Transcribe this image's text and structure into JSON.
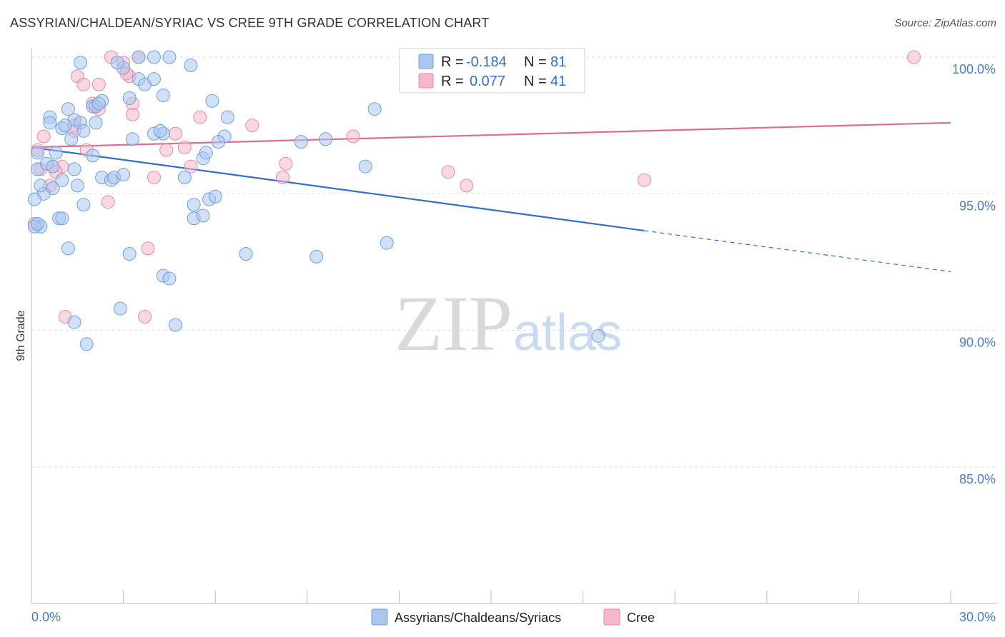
{
  "header": {
    "title": "ASSYRIAN/CHALDEAN/SYRIAC VS CREE 9TH GRADE CORRELATION CHART",
    "source": "Source: ZipAtlas.com"
  },
  "watermark": {
    "zip": "ZIP",
    "atlas": "atlas"
  },
  "legend": {
    "r_label": "R =",
    "n_label": "N =",
    "rows": [
      {
        "r": "-0.184",
        "n": "81",
        "color": "#a9c6ef"
      },
      {
        "r": "0.077",
        "n": "41",
        "color": "#f5b8cb"
      }
    ]
  },
  "bottom_legend": [
    {
      "label": "Assyrians/Chaldeans/Syriacs",
      "color": "#a9c6ef"
    },
    {
      "label": "Cree",
      "color": "#f5b8cb"
    }
  ],
  "colors": {
    "blue_fill": "#a9c6ef",
    "blue_stroke": "#6f9fdf",
    "blue_line": "#2f6fd0",
    "pink_fill": "#f5b8cb",
    "pink_stroke": "#e98aa8",
    "pink_line": "#e06a93",
    "grid": "#dddddd",
    "tick_label": "#4a7cc9"
  },
  "chart_data": {
    "type": "scatter",
    "title": "ASSYRIAN/CHALDEAN/SYRIAC VS CREE 9TH GRADE CORRELATION CHART",
    "xlabel": "",
    "ylabel": "9th Grade",
    "xlim": [
      0,
      30
    ],
    "ylim": [
      80.5,
      101
    ],
    "x_tick_labels": [
      {
        "value": 0,
        "label": "0.0%"
      },
      {
        "value": 30,
        "label": "30.0%"
      }
    ],
    "y_ticks": [
      {
        "value": 100,
        "label": "100.0%"
      },
      {
        "value": 95,
        "label": "95.0%"
      },
      {
        "value": 90,
        "label": "90.0%"
      },
      {
        "value": 85,
        "label": "85.0%"
      }
    ],
    "series": [
      {
        "name": "Assyrians/Chaldeans/Syriacs",
        "r": -0.184,
        "n": 81,
        "trend": {
          "x0": 0,
          "y0": 96.7,
          "x1": 20,
          "y1": 93.65,
          "x_dash_end": 30,
          "y_dash_end": 92.15
        },
        "points": [
          [
            1.6,
            99.8
          ],
          [
            3.0,
            99.6
          ],
          [
            3.5,
            100
          ],
          [
            4.0,
            100
          ],
          [
            4.5,
            100
          ],
          [
            5.2,
            99.7
          ],
          [
            3.5,
            99.2
          ],
          [
            3.7,
            99.0
          ],
          [
            4.0,
            99.2
          ],
          [
            4.3,
            98.6
          ],
          [
            3.2,
            98.5
          ],
          [
            2.0,
            98.2
          ],
          [
            2.3,
            98.4
          ],
          [
            2.1,
            98.2
          ],
          [
            5.9,
            98.4
          ],
          [
            11.2,
            98.1
          ],
          [
            1.2,
            98.1
          ],
          [
            0.6,
            97.8
          ],
          [
            0.6,
            97.6
          ],
          [
            1.4,
            97.7
          ],
          [
            1.6,
            97.6
          ],
          [
            2.1,
            97.6
          ],
          [
            6.4,
            97.8
          ],
          [
            1.0,
            97.4
          ],
          [
            1.7,
            97.3
          ],
          [
            4.0,
            97.2
          ],
          [
            4.3,
            97.2
          ],
          [
            3.3,
            97.0
          ],
          [
            6.3,
            97.1
          ],
          [
            8.8,
            96.9
          ],
          [
            9.6,
            97.0
          ],
          [
            1.3,
            97.0
          ],
          [
            0.2,
            96.5
          ],
          [
            0.8,
            96.5
          ],
          [
            5.6,
            96.3
          ],
          [
            5.7,
            96.5
          ],
          [
            0.2,
            95.9
          ],
          [
            0.5,
            96.1
          ],
          [
            0.7,
            96.0
          ],
          [
            1.4,
            95.9
          ],
          [
            2.0,
            96.4
          ],
          [
            2.3,
            95.6
          ],
          [
            2.6,
            95.5
          ],
          [
            2.7,
            95.6
          ],
          [
            5.0,
            95.6
          ],
          [
            10.9,
            96.0
          ],
          [
            1.0,
            95.5
          ],
          [
            1.5,
            95.3
          ],
          [
            0.7,
            95.2
          ],
          [
            0.4,
            95.0
          ],
          [
            0.1,
            94.8
          ],
          [
            1.7,
            94.6
          ],
          [
            5.3,
            94.6
          ],
          [
            5.8,
            94.8
          ],
          [
            6.0,
            94.9
          ],
          [
            0.9,
            94.1
          ],
          [
            1.0,
            94.1
          ],
          [
            5.3,
            94.1
          ],
          [
            5.6,
            94.2
          ],
          [
            0.3,
            93.8
          ],
          [
            0.1,
            93.8
          ],
          [
            1.2,
            93.0
          ],
          [
            3.2,
            92.8
          ],
          [
            7.0,
            92.8
          ],
          [
            9.3,
            92.7
          ],
          [
            11.6,
            93.2
          ],
          [
            4.3,
            92.0
          ],
          [
            4.5,
            91.9
          ],
          [
            2.9,
            90.8
          ],
          [
            1.4,
            90.3
          ],
          [
            4.7,
            90.2
          ],
          [
            1.8,
            89.5
          ],
          [
            18.5,
            89.8
          ],
          [
            2.2,
            98.3
          ],
          [
            2.8,
            99.8
          ],
          [
            1.1,
            97.5
          ],
          [
            6.1,
            96.9
          ],
          [
            0.3,
            95.3
          ],
          [
            3.0,
            95.7
          ],
          [
            4.2,
            97.3
          ],
          [
            0.2,
            93.9
          ]
        ]
      },
      {
        "name": "Cree",
        "r": 0.077,
        "n": 41,
        "trend": {
          "x0": 0,
          "y0": 96.7,
          "x1": 30,
          "y1": 97.6
        },
        "points": [
          [
            2.6,
            100
          ],
          [
            3.0,
            99.8
          ],
          [
            3.5,
            100
          ],
          [
            1.5,
            99.3
          ],
          [
            3.2,
            99.3
          ],
          [
            1.7,
            99.0
          ],
          [
            2.2,
            99.0
          ],
          [
            2.0,
            98.3
          ],
          [
            3.3,
            98.3
          ],
          [
            2.2,
            98.1
          ],
          [
            3.3,
            97.9
          ],
          [
            5.5,
            97.8
          ],
          [
            7.2,
            97.5
          ],
          [
            1.4,
            97.5
          ],
          [
            1.4,
            97.3
          ],
          [
            4.7,
            97.2
          ],
          [
            10.5,
            97.1
          ],
          [
            0.4,
            97.1
          ],
          [
            4.4,
            96.6
          ],
          [
            5.0,
            96.7
          ],
          [
            1.8,
            96.6
          ],
          [
            0.2,
            96.6
          ],
          [
            8.3,
            96.1
          ],
          [
            0.7,
            96.0
          ],
          [
            1.0,
            96.0
          ],
          [
            5.2,
            96.0
          ],
          [
            0.8,
            95.8
          ],
          [
            4.0,
            95.6
          ],
          [
            8.2,
            95.6
          ],
          [
            13.6,
            95.8
          ],
          [
            14.2,
            95.3
          ],
          [
            20.0,
            95.5
          ],
          [
            0.6,
            95.3
          ],
          [
            2.5,
            94.7
          ],
          [
            0.1,
            93.9
          ],
          [
            3.8,
            93.0
          ],
          [
            1.1,
            90.5
          ],
          [
            3.7,
            90.5
          ],
          [
            28.8,
            100
          ],
          [
            0.3,
            95.9
          ],
          [
            3.1,
            99.4
          ]
        ]
      }
    ]
  }
}
